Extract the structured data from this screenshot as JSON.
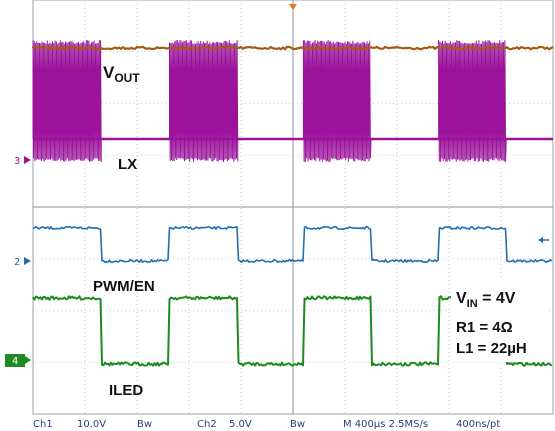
{
  "chart_data": {
    "type": "line",
    "time_per_div": "400µs",
    "x_range_us": [
      0,
      4000
    ],
    "grid": true,
    "series": [
      {
        "name": "VOUT",
        "channel": "Ch1",
        "color": "#a35a14",
        "level": "high",
        "note": "constant DC"
      },
      {
        "name": "LX",
        "channel": "Ch1",
        "color": "#9b139b",
        "burst_intervals_us": [
          [
            0,
            525
          ],
          [
            1050,
            1575
          ],
          [
            2080,
            2600
          ],
          [
            3120,
            3640
          ]
        ]
      },
      {
        "name": "PWM/EN",
        "channel": "Ch2",
        "color": "#1f6fb5",
        "high_intervals_us": [
          [
            0,
            525
          ],
          [
            1050,
            1575
          ],
          [
            2080,
            2600
          ],
          [
            3120,
            3640
          ]
        ]
      },
      {
        "name": "ILED",
        "channel": "Ch4",
        "color": "#1f8a1f",
        "high_intervals_us": [
          [
            0,
            525
          ],
          [
            1050,
            1575
          ],
          [
            2080,
            2600
          ],
          [
            3120,
            3640
          ]
        ]
      }
    ],
    "channel_markers": [
      "3",
      "2",
      "4"
    ],
    "annotations": {
      "vin": {
        "main": "V",
        "sub": "IN",
        "value": " = 4V"
      },
      "r1": "R1 = 4Ω",
      "l1": "L1 = 22µH"
    },
    "labels": {
      "vout": {
        "main": "V",
        "sub": "OUT"
      },
      "lx": "LX",
      "pwm": "PWM/EN",
      "iled": "ILED"
    }
  },
  "footer": {
    "ch1": "Ch1",
    "ch1_scale": "10.0V",
    "ch1_bw": "Bw",
    "ch2": "Ch2",
    "ch2_scale": "5.0V",
    "ch2_bw": "Bw",
    "timebase": "M 400µs 2.5MS/s",
    "sample": "400ns/pt"
  }
}
